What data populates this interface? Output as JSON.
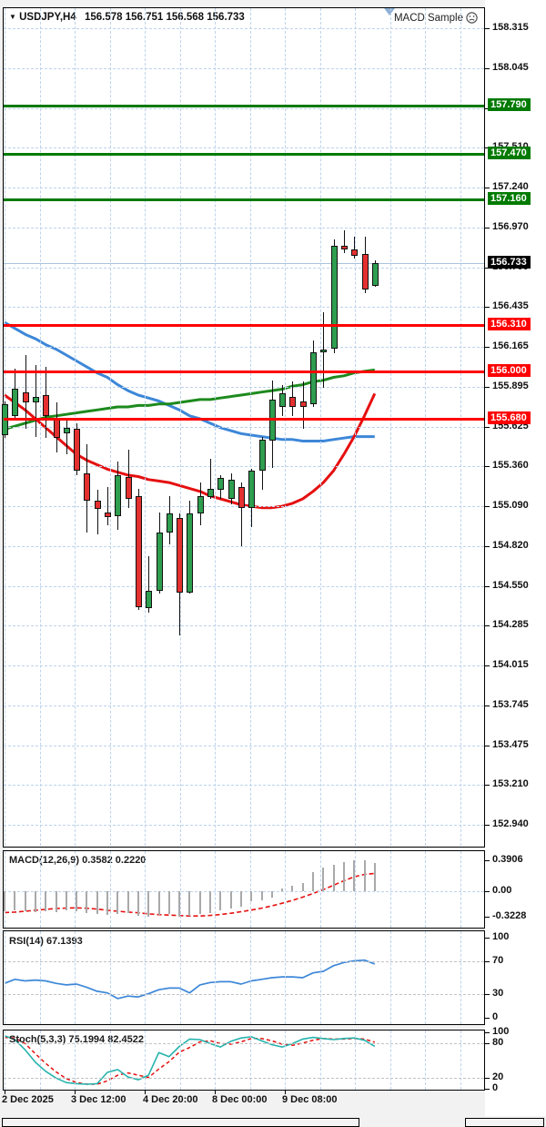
{
  "window": {
    "dropdown_glyph": "▼",
    "symbol_title": "USDJPY,H4",
    "ohlc_text": "156.578 156.751 156.568 156.733",
    "ea_label": "MACD Sample"
  },
  "colors": {
    "up_candle": "#2e9e4f",
    "down_candle": "#e53030",
    "resistance_green": "#007a00",
    "support_red": "#fe0000",
    "ma_blue": "#3d87d8",
    "ma_red": "#e51010",
    "ma_green": "#1d8a1d",
    "macd_hist": "#a9a9a9",
    "macd_signal": "#e51010",
    "rsi_line": "#3d87d8",
    "stoch_k": "#26b3ad",
    "stoch_d": "#e51010",
    "grid": "#bdd3ec",
    "current_badge": "#000000"
  },
  "price_axis": {
    "tick_labels": [
      "158.315",
      "158.045",
      "157.775",
      "157.510",
      "157.240",
      "156.970",
      "156.700",
      "156.435",
      "156.165",
      "155.895",
      "155.625",
      "155.360",
      "155.090",
      "154.820",
      "154.550",
      "154.285",
      "154.015",
      "153.745",
      "153.475",
      "153.210",
      "152.940"
    ],
    "current_price_label": "156.733"
  },
  "time_axis": {
    "labels": [
      "2 Dec 2025",
      "3 Dec 12:00",
      "4 Dec 20:00",
      "8 Dec 00:00",
      "9 Dec 08:00"
    ]
  },
  "indicators": {
    "macd_label": "MACD(12,26,9) 0.3582 0.2220",
    "macd_ticks": [
      "0.3906",
      "0.00",
      "-0.3228"
    ],
    "rsi_label": "RSI(14) 67.1393",
    "rsi_ticks": [
      "100",
      "70",
      "30",
      "0"
    ],
    "stoch_label": "Stoch(5,3,3) 75.1994 82.4522",
    "stoch_ticks": [
      "100",
      "80",
      "20",
      "0"
    ]
  },
  "chart_data": [
    {
      "type": "candlestick",
      "title": "USDJPY,H4",
      "ylim": [
        152.8,
        158.45
      ],
      "grid_levels": [
        158.315,
        158.045,
        157.775,
        157.51,
        157.24,
        156.97,
        156.7,
        156.435,
        156.165,
        155.895,
        155.625,
        155.36,
        155.09,
        154.82,
        154.55,
        154.285,
        154.015,
        153.745,
        153.475,
        153.21,
        152.94
      ],
      "hlines_green": [
        157.79,
        157.47,
        157.16
      ],
      "hlines_red": [
        156.31,
        156.0,
        155.68
      ],
      "bid": 156.733,
      "candles_ohlc": [
        [
          155.57,
          155.8,
          155.55,
          155.78
        ],
        [
          155.7,
          156.02,
          155.68,
          155.88
        ],
        [
          155.86,
          156.11,
          155.61,
          155.79
        ],
        [
          155.79,
          156.04,
          155.56,
          155.83
        ],
        [
          155.84,
          156.03,
          155.55,
          155.7
        ],
        [
          155.68,
          155.79,
          155.45,
          155.55
        ],
        [
          155.58,
          155.68,
          155.44,
          155.62
        ],
        [
          155.61,
          155.65,
          155.3,
          155.33
        ],
        [
          155.31,
          155.51,
          154.91,
          155.13
        ],
        [
          155.13,
          155.2,
          154.9,
          155.07
        ],
        [
          155.05,
          155.22,
          154.96,
          155.02
        ],
        [
          155.02,
          155.39,
          154.93,
          155.3
        ],
        [
          155.29,
          155.47,
          155.08,
          155.14
        ],
        [
          155.16,
          155.21,
          154.39,
          154.41
        ],
        [
          154.4,
          154.75,
          154.37,
          154.52
        ],
        [
          154.52,
          155.05,
          154.5,
          154.91
        ],
        [
          154.91,
          155.16,
          154.83,
          155.04
        ],
        [
          155.01,
          155.04,
          154.22,
          154.51
        ],
        [
          154.51,
          155.13,
          154.5,
          155.04
        ],
        [
          155.04,
          155.25,
          154.96,
          155.16
        ],
        [
          155.15,
          155.41,
          155.14,
          155.21
        ],
        [
          155.2,
          155.3,
          155.14,
          155.28
        ],
        [
          155.14,
          155.31,
          155.1,
          155.27
        ],
        [
          155.22,
          155.25,
          154.82,
          155.08
        ],
        [
          155.08,
          155.34,
          154.95,
          155.33
        ],
        [
          155.33,
          155.56,
          155.2,
          155.54
        ],
        [
          155.53,
          155.94,
          155.35,
          155.81
        ],
        [
          155.76,
          155.91,
          155.7,
          155.85
        ],
        [
          155.83,
          155.93,
          155.7,
          155.76
        ],
        [
          155.8,
          155.93,
          155.61,
          155.76
        ],
        [
          155.78,
          156.21,
          155.76,
          156.13
        ],
        [
          156.13,
          156.4,
          155.89,
          156.15
        ],
        [
          156.15,
          156.89,
          156.12,
          156.85
        ],
        [
          156.85,
          156.95,
          156.8,
          156.82
        ],
        [
          156.82,
          156.91,
          156.76,
          156.78
        ],
        [
          156.79,
          156.91,
          156.53,
          156.55
        ],
        [
          156.578,
          156.751,
          156.568,
          156.733
        ]
      ],
      "ma_blue": [
        156.33,
        156.29,
        156.25,
        156.22,
        156.18,
        156.15,
        156.11,
        156.07,
        156.03,
        155.99,
        155.96,
        155.91,
        155.87,
        155.84,
        155.82,
        155.8,
        155.77,
        155.74,
        155.7,
        155.68,
        155.65,
        155.62,
        155.6,
        155.58,
        155.57,
        155.56,
        155.55,
        155.54,
        155.54,
        155.53,
        155.53,
        155.53,
        155.54,
        155.55,
        155.56,
        155.56,
        155.56
      ],
      "ma_red": [
        155.84,
        155.79,
        155.74,
        155.68,
        155.62,
        155.56,
        155.5,
        155.44,
        155.4,
        155.37,
        155.34,
        155.32,
        155.3,
        155.29,
        155.27,
        155.26,
        155.25,
        155.23,
        155.21,
        155.19,
        155.16,
        155.14,
        155.12,
        155.1,
        155.09,
        155.08,
        155.08,
        155.09,
        155.11,
        155.14,
        155.19,
        155.25,
        155.33,
        155.44,
        155.56,
        155.7,
        155.85
      ],
      "ma_green": [
        155.61,
        155.63,
        155.65,
        155.67,
        155.69,
        155.7,
        155.71,
        155.72,
        155.73,
        155.74,
        155.75,
        155.76,
        155.76,
        155.77,
        155.77,
        155.78,
        155.78,
        155.79,
        155.8,
        155.81,
        155.81,
        155.82,
        155.83,
        155.84,
        155.85,
        155.86,
        155.87,
        155.88,
        155.9,
        155.91,
        155.93,
        155.94,
        155.96,
        155.97,
        155.99,
        156.0,
        156.01
      ]
    },
    {
      "type": "bar",
      "title": "MACD(12,26,9)",
      "ylim": [
        -0.458,
        0.502
      ],
      "axis_ticks": [
        0.3906,
        0.0,
        -0.3228
      ],
      "values": [
        -0.25,
        -0.24,
        -0.25,
        -0.26,
        -0.25,
        -0.26,
        -0.24,
        -0.25,
        -0.27,
        -0.29,
        -0.3,
        -0.29,
        -0.28,
        -0.31,
        -0.3228,
        -0.3,
        -0.29,
        -0.32,
        -0.31,
        -0.29,
        -0.27,
        -0.24,
        -0.22,
        -0.2,
        -0.13,
        -0.11,
        -0.08,
        0.03,
        0.07,
        0.1,
        0.24,
        0.3,
        0.33,
        0.36,
        0.3906,
        0.385,
        0.3582
      ],
      "signal": [
        -0.27,
        -0.262,
        -0.252,
        -0.24,
        -0.228,
        -0.218,
        -0.212,
        -0.21,
        -0.215,
        -0.225,
        -0.24,
        -0.252,
        -0.262,
        -0.272,
        -0.285,
        -0.295,
        -0.3,
        -0.307,
        -0.312,
        -0.312,
        -0.305,
        -0.293,
        -0.277,
        -0.258,
        -0.237,
        -0.213,
        -0.185,
        -0.152,
        -0.115,
        -0.075,
        -0.03,
        0.02,
        0.075,
        0.13,
        0.18,
        0.21,
        0.222
      ]
    },
    {
      "type": "line",
      "title": "RSI(14)",
      "ylim": [
        -8,
        108
      ],
      "axis_ticks": [
        100,
        70,
        30,
        0
      ],
      "dashed_levels": [
        70,
        30
      ],
      "values": [
        43,
        48,
        46,
        47,
        46,
        43,
        41,
        42,
        38,
        33,
        31,
        24,
        27,
        26,
        30,
        35,
        37,
        37,
        31,
        41,
        44,
        45,
        45,
        42,
        46,
        48,
        50,
        51,
        51,
        50,
        56,
        58,
        65,
        69,
        71,
        72,
        67.14
      ]
    },
    {
      "type": "line",
      "title": "Stoch(5,3,3)",
      "ylim": [
        -1.6,
        103.2
      ],
      "axis_ticks": [
        100,
        80,
        20,
        0
      ],
      "dashed_levels": [
        80,
        20
      ],
      "k_values": [
        94,
        87,
        69,
        47,
        31,
        19,
        11,
        9,
        8,
        9,
        29,
        34,
        21,
        16,
        24,
        64,
        57,
        75,
        88,
        87,
        80,
        74,
        84,
        90,
        92,
        85,
        78,
        74,
        80,
        88,
        91,
        89,
        87,
        89,
        90,
        86,
        75.2
      ],
      "d_values": [
        91,
        90,
        80,
        62,
        45,
        30,
        18,
        11,
        8,
        8,
        14,
        24,
        28,
        24,
        20,
        35,
        48,
        65,
        73,
        83,
        85,
        80,
        79,
        83,
        89,
        89,
        85,
        79,
        77,
        81,
        86,
        89,
        88,
        88,
        89,
        88,
        82.45
      ]
    }
  ]
}
